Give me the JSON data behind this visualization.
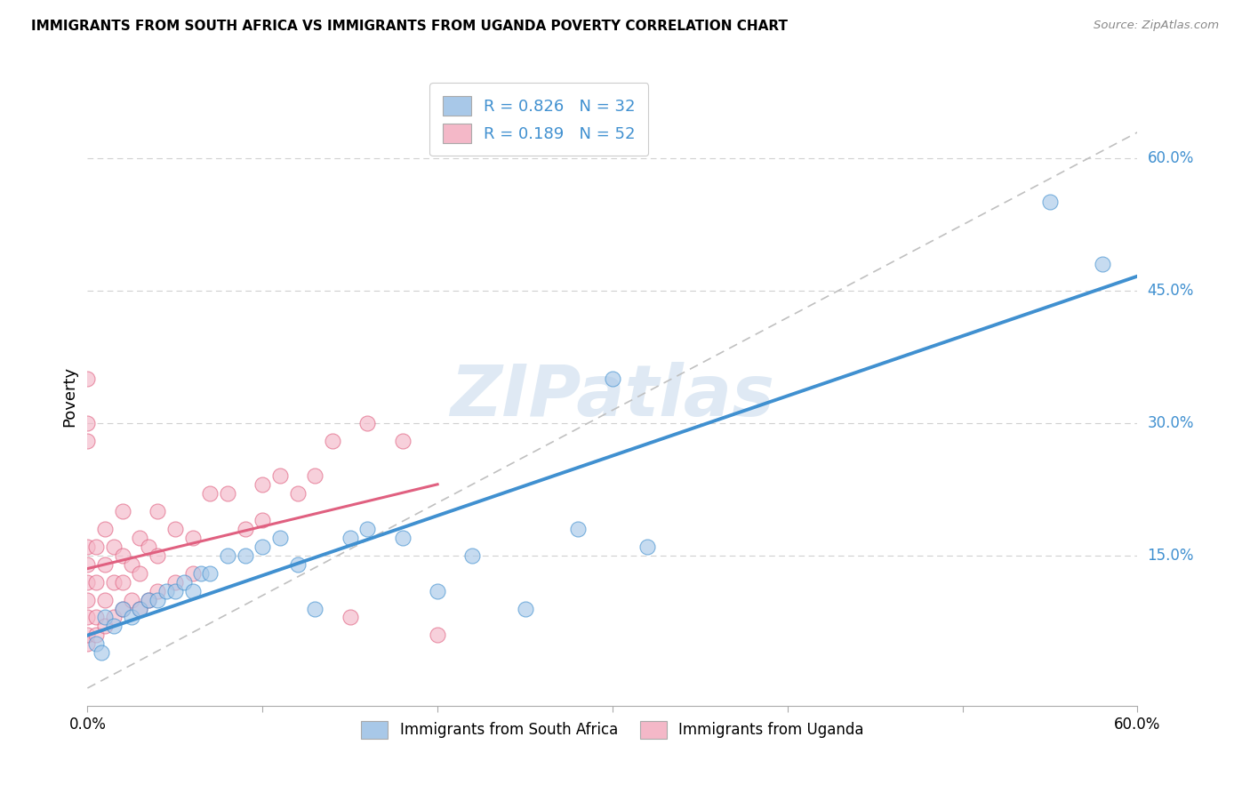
{
  "title": "IMMIGRANTS FROM SOUTH AFRICA VS IMMIGRANTS FROM UGANDA POVERTY CORRELATION CHART",
  "source": "Source: ZipAtlas.com",
  "ylabel": "Poverty",
  "ylabel_ticks": [
    "15.0%",
    "30.0%",
    "45.0%",
    "60.0%"
  ],
  "ylabel_tick_vals": [
    0.15,
    0.3,
    0.45,
    0.6
  ],
  "xlim": [
    0.0,
    0.6
  ],
  "ylim": [
    -0.02,
    0.68
  ],
  "legend_label1": "Immigrants from South Africa",
  "legend_label2": "Immigrants from Uganda",
  "R1": 0.826,
  "N1": 32,
  "R2": 0.189,
  "N2": 52,
  "color_blue": "#a8c8e8",
  "color_pink": "#f4b8c8",
  "line_blue": "#4090d0",
  "line_pink": "#e06080",
  "watermark": "ZIPatlas",
  "south_africa_x": [
    0.005,
    0.008,
    0.01,
    0.015,
    0.02,
    0.025,
    0.03,
    0.035,
    0.04,
    0.045,
    0.05,
    0.055,
    0.06,
    0.065,
    0.07,
    0.08,
    0.09,
    0.1,
    0.11,
    0.12,
    0.13,
    0.15,
    0.16,
    0.18,
    0.2,
    0.22,
    0.25,
    0.28,
    0.3,
    0.32,
    0.55,
    0.58
  ],
  "south_africa_y": [
    0.05,
    0.04,
    0.08,
    0.07,
    0.09,
    0.08,
    0.09,
    0.1,
    0.1,
    0.11,
    0.11,
    0.12,
    0.11,
    0.13,
    0.13,
    0.15,
    0.15,
    0.16,
    0.17,
    0.14,
    0.09,
    0.17,
    0.18,
    0.17,
    0.11,
    0.15,
    0.09,
    0.18,
    0.35,
    0.16,
    0.55,
    0.48
  ],
  "uganda_x": [
    0.0,
    0.0,
    0.0,
    0.0,
    0.0,
    0.0,
    0.0,
    0.0,
    0.0,
    0.0,
    0.005,
    0.005,
    0.005,
    0.005,
    0.01,
    0.01,
    0.01,
    0.01,
    0.015,
    0.015,
    0.015,
    0.02,
    0.02,
    0.02,
    0.02,
    0.025,
    0.025,
    0.03,
    0.03,
    0.03,
    0.035,
    0.035,
    0.04,
    0.04,
    0.04,
    0.05,
    0.05,
    0.06,
    0.06,
    0.07,
    0.08,
    0.09,
    0.1,
    0.1,
    0.11,
    0.12,
    0.13,
    0.14,
    0.15,
    0.16,
    0.18,
    0.2
  ],
  "uganda_y": [
    0.05,
    0.06,
    0.08,
    0.1,
    0.12,
    0.14,
    0.16,
    0.28,
    0.3,
    0.35,
    0.06,
    0.08,
    0.12,
    0.16,
    0.07,
    0.1,
    0.14,
    0.18,
    0.08,
    0.12,
    0.16,
    0.09,
    0.12,
    0.15,
    0.2,
    0.1,
    0.14,
    0.09,
    0.13,
    0.17,
    0.1,
    0.16,
    0.11,
    0.15,
    0.2,
    0.12,
    0.18,
    0.13,
    0.17,
    0.22,
    0.22,
    0.18,
    0.19,
    0.23,
    0.24,
    0.22,
    0.24,
    0.28,
    0.08,
    0.3,
    0.28,
    0.06
  ]
}
